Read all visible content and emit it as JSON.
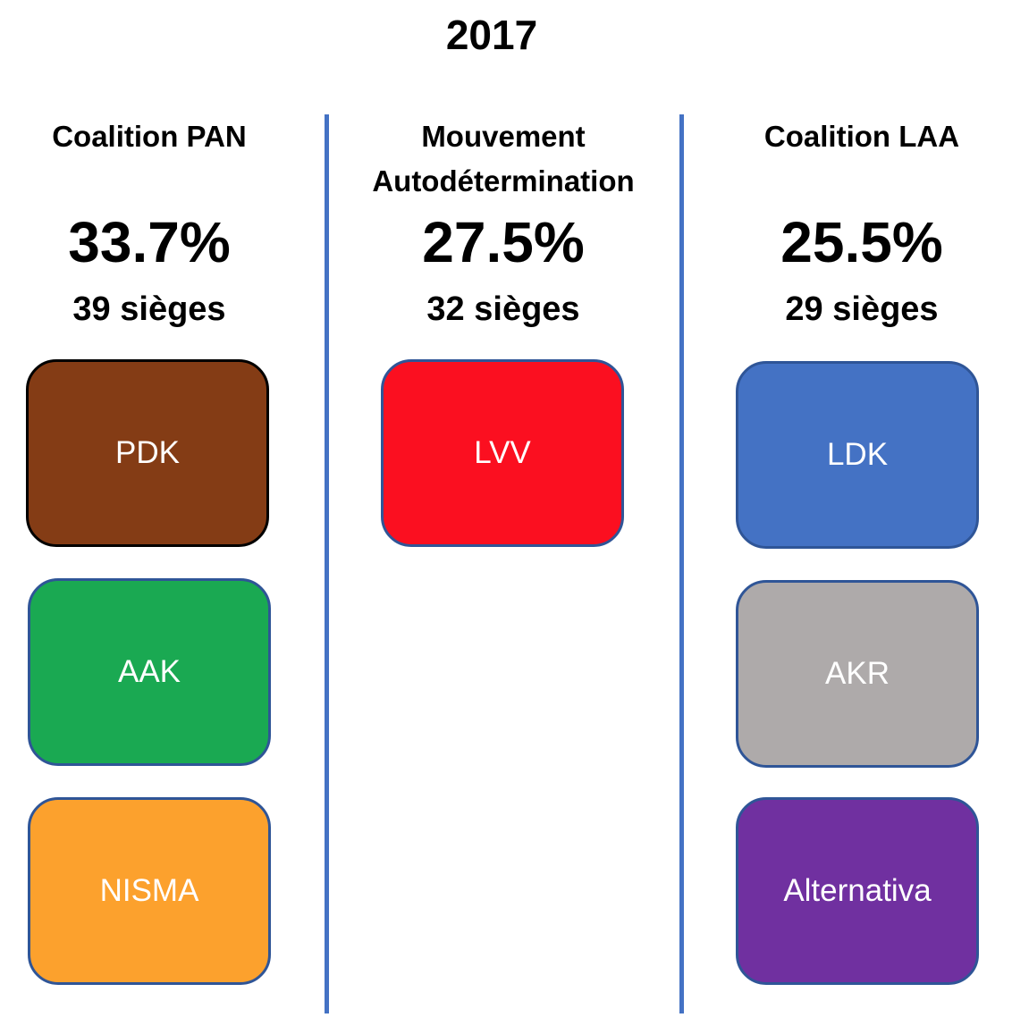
{
  "title": "2017",
  "columns": [
    {
      "name": "Coalition PAN",
      "percent": "33.7%",
      "seats": "39 sièges",
      "parties": [
        {
          "label": "PDK",
          "color": "#843c15",
          "border": "#000000"
        },
        {
          "label": "AAK",
          "color": "#1aa952",
          "border": "#2f5597"
        },
        {
          "label": "NISMA",
          "color": "#fca12d",
          "border": "#2f5597"
        }
      ]
    },
    {
      "name": "Mouvement Autodétermination",
      "percent": "27.5%",
      "seats": "32 sièges",
      "parties": [
        {
          "label": "LVV",
          "color": "#fb0f20",
          "border": "#2f5597"
        }
      ]
    },
    {
      "name": "Coalition LAA",
      "percent": "25.5%",
      "seats": "29 sièges",
      "parties": [
        {
          "label": "LDK",
          "color": "#4472c4",
          "border": "#2f5597"
        },
        {
          "label": "AKR",
          "color": "#aeaaaa",
          "border": "#2f5597"
        },
        {
          "label": "Alternativa",
          "color": "#7030a0",
          "border": "#2f5597"
        }
      ]
    }
  ],
  "divider_color": "#4472c4"
}
